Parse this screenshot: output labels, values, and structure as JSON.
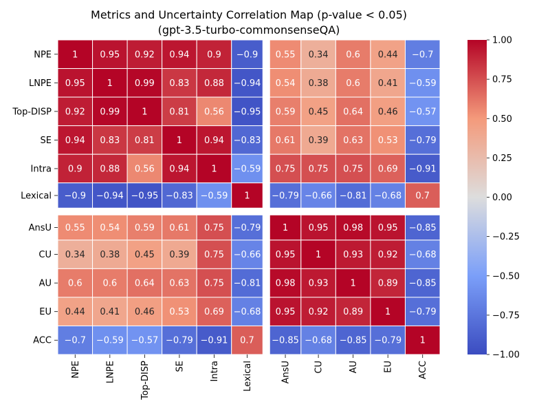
{
  "chart_data": {
    "type": "heatmap",
    "title": "Metrics and Uncertainty Correlation Map (p-value < 0.05)",
    "subtitle": "(gpt-3.5-turbo-commonsenseQA)",
    "labels": [
      "NPE",
      "LNPE",
      "Top-DISP",
      "SE",
      "Intra",
      "Lexical",
      "AnsU",
      "CU",
      "AU",
      "EU",
      "ACC"
    ],
    "matrix": [
      [
        1,
        0.95,
        0.92,
        0.94,
        0.9,
        -0.9,
        0.55,
        0.34,
        0.6,
        0.44,
        -0.7
      ],
      [
        0.95,
        1,
        0.99,
        0.83,
        0.88,
        -0.94,
        0.54,
        0.38,
        0.6,
        0.41,
        -0.59
      ],
      [
        0.92,
        0.99,
        1,
        0.81,
        0.56,
        -0.95,
        0.59,
        0.45,
        0.64,
        0.46,
        -0.57
      ],
      [
        0.94,
        0.83,
        0.81,
        1,
        0.94,
        -0.83,
        0.61,
        0.39,
        0.63,
        0.53,
        -0.79
      ],
      [
        0.9,
        0.88,
        0.56,
        0.94,
        1,
        -0.59,
        0.75,
        0.75,
        0.75,
        0.69,
        -0.91
      ],
      [
        -0.9,
        -0.94,
        -0.95,
        -0.83,
        -0.59,
        1,
        -0.79,
        -0.66,
        -0.81,
        -0.68,
        0.7
      ],
      [
        0.55,
        0.54,
        0.59,
        0.61,
        0.75,
        -0.79,
        1,
        0.95,
        0.98,
        0.95,
        -0.85
      ],
      [
        0.34,
        0.38,
        0.45,
        0.39,
        0.75,
        -0.66,
        0.95,
        1,
        0.93,
        0.92,
        -0.68
      ],
      [
        0.6,
        0.6,
        0.64,
        0.63,
        0.75,
        -0.81,
        0.98,
        0.93,
        1,
        0.89,
        -0.85
      ],
      [
        0.44,
        0.41,
        0.46,
        0.53,
        0.69,
        -0.68,
        0.95,
        0.92,
        0.89,
        1,
        -0.79
      ],
      [
        -0.7,
        -0.59,
        -0.57,
        -0.79,
        -0.91,
        0.7,
        -0.85,
        -0.68,
        -0.85,
        -0.79,
        1
      ]
    ],
    "split_after_index": 5,
    "colorbar": {
      "min": -1,
      "max": 1,
      "ticks": [
        1.0,
        0.75,
        0.5,
        0.25,
        0.0,
        -0.25,
        -0.5,
        -0.75,
        -1.0
      ],
      "tick_labels": [
        "1.00",
        "0.75",
        "0.50",
        "0.25",
        "0.00",
        "−0.25",
        "−0.50",
        "−0.75",
        "−1.00"
      ]
    },
    "colormap": {
      "name": "coolwarm",
      "stops": [
        [
          -1.0,
          "#3b4cc0"
        ],
        [
          -0.5,
          "#7b9ff9"
        ],
        [
          0.0,
          "#dddddd"
        ],
        [
          0.5,
          "#f49a7b"
        ],
        [
          1.0,
          "#b40426"
        ]
      ]
    }
  }
}
